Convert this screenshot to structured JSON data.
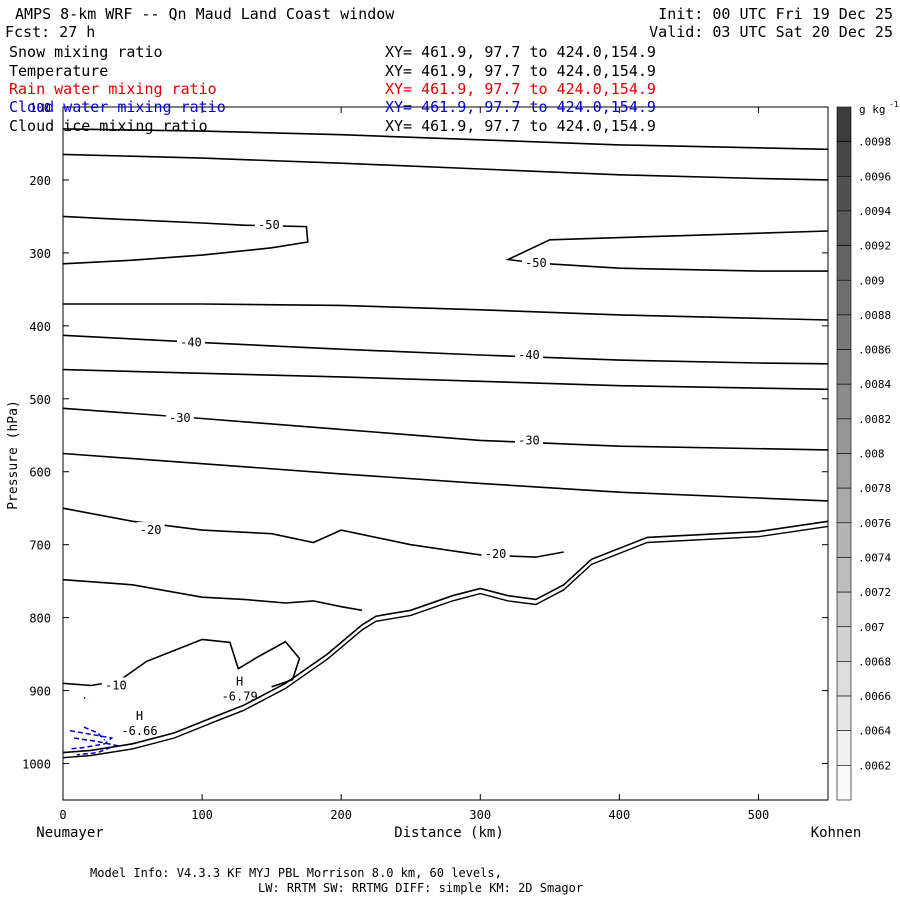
{
  "header": {
    "title": "AMPS 8-km WRF -- Qn Maud Land Coast window",
    "init": "Init: 00 UTC Fri 19 Dec 25",
    "fcst": "Fcst:   27 h",
    "valid": "Valid: 03 UTC Sat 20 Dec 25"
  },
  "legend_fields": [
    {
      "label": "Snow mixing ratio",
      "xy": "XY= 461.9, 97.7 to 424.0,154.9",
      "color": "#000000"
    },
    {
      "label": "Temperature",
      "xy": "XY= 461.9, 97.7 to 424.0,154.9",
      "color": "#000000"
    },
    {
      "label": "Rain water mixing ratio",
      "xy": "XY= 461.9, 97.7 to 424.0,154.9",
      "color": "#e00000"
    },
    {
      "label": "Cloud water mixing ratio",
      "xy": "XY= 461.9, 97.7 to 424.0,154.9",
      "color": "#0000cc"
    },
    {
      "label": "Cloud ice mixing ratio",
      "xy": "XY= 461.9, 97.7 to 424.0,154.9",
      "color": "#000000"
    }
  ],
  "chart_data": {
    "type": "line",
    "title": "AMPS 8-km WRF -- Qn Maud Land Coast window",
    "xlabel": "Distance (km)",
    "ylabel": "Pressure (hPa)",
    "xlim": [
      0,
      550
    ],
    "ylim": [
      1050,
      100
    ],
    "x_ticks": [
      0,
      100,
      200,
      300,
      400,
      500
    ],
    "y_ticks": [
      100,
      200,
      300,
      400,
      500,
      600,
      700,
      800,
      900,
      1000
    ],
    "x_end_labels": {
      "left": "Neumayer",
      "right": "Kohnen"
    },
    "colorbar": {
      "unit": "g kg",
      "unit_exp": "-1",
      "labels": [
        ".0098",
        ".0096",
        ".0094",
        ".0092",
        ".009",
        ".0088",
        ".0086",
        ".0084",
        ".0082",
        ".008",
        ".0078",
        ".0076",
        ".0074",
        ".0072",
        ".007",
        ".0068",
        ".0066",
        ".0064",
        ".0062"
      ]
    },
    "contour_labels": [
      {
        "text": "-50",
        "x": 148,
        "p": 262
      },
      {
        "text": "-50",
        "x": 340,
        "p": 314
      },
      {
        "text": "-40",
        "x": 92,
        "p": 423
      },
      {
        "text": "-40",
        "x": 335,
        "p": 440
      },
      {
        "text": "-30",
        "x": 84,
        "p": 526
      },
      {
        "text": "-30",
        "x": 335,
        "p": 557
      },
      {
        "text": "-20",
        "x": 63,
        "p": 680
      },
      {
        "text": "-20",
        "x": 311,
        "p": 713
      },
      {
        "text": "-10",
        "x": 38,
        "p": 893
      }
    ],
    "extrema": [
      {
        "mark": "H",
        "value": "-6.66",
        "x": 55,
        "p": 940
      },
      {
        "mark": "H",
        "value": "-6.79",
        "x": 127,
        "p": 893
      }
    ],
    "isotherms": [
      {
        "value": null,
        "points": [
          [
            0,
            130
          ],
          [
            100,
            133
          ],
          [
            200,
            138
          ],
          [
            300,
            145
          ],
          [
            400,
            152
          ],
          [
            550,
            158
          ]
        ]
      },
      {
        "value": null,
        "points": [
          [
            0,
            165
          ],
          [
            100,
            170
          ],
          [
            200,
            177
          ],
          [
            300,
            185
          ],
          [
            400,
            193
          ],
          [
            500,
            198
          ],
          [
            550,
            200
          ]
        ]
      },
      {
        "value": -50,
        "points": [
          [
            0,
            250
          ],
          [
            30,
            253
          ],
          [
            100,
            259
          ],
          [
            130,
            262
          ],
          [
            175,
            264
          ],
          [
            176,
            285
          ],
          [
            150,
            293
          ],
          [
            100,
            303
          ],
          [
            50,
            310
          ],
          [
            0,
            315
          ]
        ]
      },
      {
        "value": -50,
        "points": [
          [
            550,
            270
          ],
          [
            450,
            276
          ],
          [
            350,
            282
          ],
          [
            320,
            309
          ],
          [
            340,
            314
          ],
          [
            400,
            321
          ],
          [
            500,
            325
          ],
          [
            550,
            325
          ]
        ]
      },
      {
        "value": null,
        "points": [
          [
            0,
            370
          ],
          [
            100,
            370
          ],
          [
            200,
            372
          ],
          [
            300,
            378
          ],
          [
            400,
            385
          ],
          [
            550,
            392
          ]
        ]
      },
      {
        "value": -40,
        "points": [
          [
            0,
            413
          ],
          [
            100,
            423
          ],
          [
            200,
            432
          ],
          [
            300,
            440
          ],
          [
            400,
            447
          ],
          [
            500,
            451
          ],
          [
            550,
            452
          ]
        ]
      },
      {
        "value": null,
        "points": [
          [
            0,
            460
          ],
          [
            100,
            465
          ],
          [
            200,
            470
          ],
          [
            300,
            476
          ],
          [
            400,
            482
          ],
          [
            550,
            487
          ]
        ]
      },
      {
        "value": -30,
        "points": [
          [
            0,
            513
          ],
          [
            100,
            527
          ],
          [
            200,
            542
          ],
          [
            300,
            557
          ],
          [
            400,
            565
          ],
          [
            550,
            570
          ]
        ]
      },
      {
        "value": null,
        "points": [
          [
            0,
            575
          ],
          [
            100,
            589
          ],
          [
            200,
            603
          ],
          [
            300,
            616
          ],
          [
            400,
            628
          ],
          [
            500,
            636
          ],
          [
            550,
            640
          ]
        ]
      },
      {
        "value": -20,
        "points": [
          [
            0,
            650
          ],
          [
            50,
            668
          ],
          [
            100,
            680
          ],
          [
            150,
            685
          ],
          [
            180,
            697
          ],
          [
            200,
            680
          ],
          [
            250,
            700
          ],
          [
            300,
            714
          ],
          [
            340,
            717
          ],
          [
            360,
            710
          ]
        ]
      },
      {
        "value": -10,
        "points": [
          [
            0,
            748
          ],
          [
            50,
            755
          ],
          [
            100,
            772
          ],
          [
            130,
            775
          ],
          [
            160,
            780
          ],
          [
            180,
            777
          ],
          [
            200,
            785
          ],
          [
            215,
            790
          ]
        ]
      },
      {
        "value": -10,
        "points": [
          [
            0,
            890
          ],
          [
            20,
            893
          ],
          [
            40,
            887
          ],
          [
            60,
            860
          ],
          [
            100,
            830
          ],
          [
            120,
            834
          ],
          [
            126,
            870
          ],
          [
            140,
            854
          ],
          [
            160,
            833
          ],
          [
            170,
            856
          ],
          [
            165,
            885
          ],
          [
            150,
            895
          ]
        ]
      }
    ],
    "terrain": [
      [
        0,
        985
      ],
      [
        20,
        982
      ],
      [
        50,
        973
      ],
      [
        80,
        958
      ],
      [
        110,
        935
      ],
      [
        130,
        920
      ],
      [
        160,
        890
      ],
      [
        190,
        850
      ],
      [
        215,
        810
      ],
      [
        225,
        798
      ],
      [
        250,
        790
      ],
      [
        280,
        770
      ],
      [
        300,
        760
      ],
      [
        320,
        770
      ],
      [
        340,
        775
      ],
      [
        360,
        755
      ],
      [
        380,
        720
      ],
      [
        420,
        690
      ],
      [
        500,
        682
      ],
      [
        550,
        668
      ]
    ],
    "cloud_water": [
      {
        "points": [
          [
            5,
            955
          ],
          [
            20,
            960
          ],
          [
            35,
            965
          ],
          [
            30,
            973
          ],
          [
            15,
            978
          ],
          [
            5,
            980
          ]
        ]
      },
      {
        "points": [
          [
            8,
            965
          ],
          [
            25,
            970
          ],
          [
            38,
            975
          ],
          [
            25,
            985
          ],
          [
            10,
            988
          ]
        ]
      },
      {
        "points": [
          [
            15,
            950
          ],
          [
            25,
            958
          ],
          [
            30,
            968
          ]
        ]
      },
      {
        "points": [
          [
            15,
            910
          ],
          [
            16,
            910
          ]
        ]
      }
    ]
  },
  "footer": {
    "line1": "Model Info: V4.3.3   KF      MYJ PBL  Morrison              8.0 km,  60 levels,",
    "line2": "LW: RRTM SW: RRTMG   DIFF: simple KM: 2D Smagor"
  }
}
